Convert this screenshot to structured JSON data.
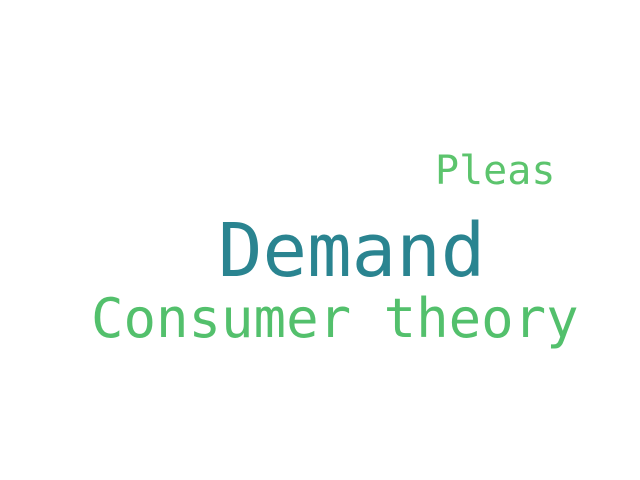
{
  "words": [
    {
      "text": "Pleas",
      "color": "#5cc46d"
    },
    {
      "text": "Demand",
      "color": "#2a8490"
    },
    {
      "text": "Consumer theory",
      "color": "#53c06c"
    }
  ]
}
